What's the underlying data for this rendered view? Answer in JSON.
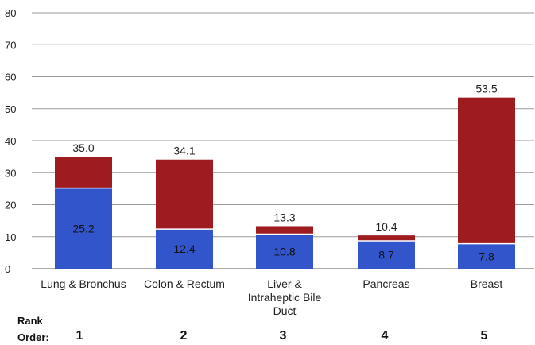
{
  "chart_data": {
    "type": "bar",
    "stacked": true,
    "title": "",
    "xlabel": "",
    "ylabel": "",
    "ylim": [
      0,
      80
    ],
    "yticks": [
      0,
      10,
      20,
      30,
      40,
      50,
      60,
      70,
      80
    ],
    "grid": true,
    "legend": "none",
    "categories": [
      [
        "Lung & Bronchus"
      ],
      [
        "Colon & Rectum"
      ],
      [
        "Liver &",
        "Intraheptic Bile",
        "Duct"
      ],
      [
        "Pancreas"
      ],
      [
        "Breast"
      ]
    ],
    "series": [
      {
        "color": "#3355cc",
        "values": [
          25.2,
          12.4,
          10.8,
          8.7,
          7.8
        ]
      },
      {
        "color": "#9e1b20",
        "values": [
          9.8,
          21.7,
          2.5,
          1.7,
          45.7
        ]
      }
    ],
    "value_labels": [
      "25.2",
      "12.4",
      "10.8",
      "8.7",
      "7.8"
    ],
    "total_labels": [
      "35.0",
      "34.1",
      "13.3",
      "10.4",
      "53.5"
    ]
  },
  "rank": {
    "title_line1": "Rank",
    "title_line2": "Order:",
    "values": [
      "1",
      "2",
      "3",
      "4",
      "5"
    ]
  }
}
